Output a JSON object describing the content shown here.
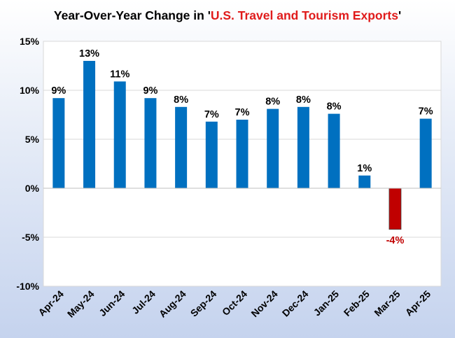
{
  "chart_data": {
    "type": "bar",
    "title_prefix": "Year-Over-Year Change in '",
    "title_highlight": "U.S. Travel and Tourism Exports",
    "title_suffix": "'",
    "categories": [
      "Apr-24",
      "May-24",
      "Jun-24",
      "Jul-24",
      "Aug-24",
      "Sep-24",
      "Oct-24",
      "Nov-24",
      "Dec-24",
      "Jan-25",
      "Feb-25",
      "Mar-25",
      "Apr-25"
    ],
    "values": [
      9.2,
      13.0,
      10.9,
      9.2,
      8.3,
      6.8,
      7.0,
      8.1,
      8.3,
      7.6,
      1.3,
      -4.2,
      7.1
    ],
    "data_labels": [
      "9%",
      "13%",
      "11%",
      "9%",
      "8%",
      "7%",
      "7%",
      "8%",
      "8%",
      "8%",
      "1%",
      "-4%",
      "7%"
    ],
    "ylim": [
      -10,
      15
    ],
    "yticks": [
      15,
      10,
      5,
      0,
      -5,
      -10
    ],
    "ytick_labels": [
      "15%",
      "10%",
      "5%",
      "0%",
      "-5%",
      "-10%"
    ],
    "xlabel": "",
    "ylabel": "",
    "grid": true,
    "legend": "none"
  },
  "colors": {
    "positive_bar": "#0070c0",
    "negative_bar": "#c00000",
    "positive_label": "#000000",
    "negative_label": "#c00000",
    "title_highlight": "#e01b1b",
    "gridline": "#d9d9d9",
    "plot_background": "#ffffff"
  }
}
